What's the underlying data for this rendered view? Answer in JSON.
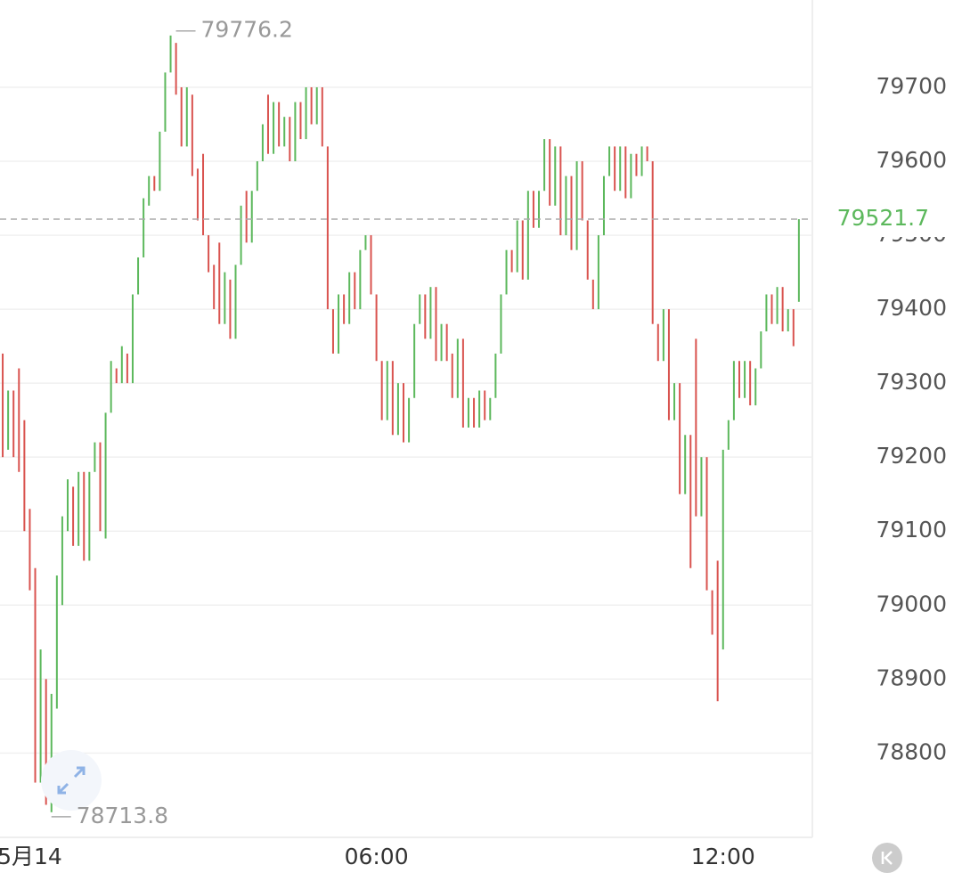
{
  "chart_data": {
    "type": "ohlc",
    "up_color": "#5cb85c",
    "down_color": "#d9534f",
    "open": [
      79340,
      79210,
      79290,
      79320,
      79250,
      79130,
      79050,
      78760,
      78900,
      78720,
      78860,
      79000,
      79100,
      79160,
      79080,
      79180,
      79060,
      79180,
      79220,
      79090,
      79260,
      79320,
      79300,
      79340,
      79300,
      79420,
      79470,
      79540,
      79580,
      79560,
      79640,
      79720,
      79760,
      79700,
      79620,
      79690,
      79590,
      79610,
      79500,
      79460,
      79490,
      79380,
      79440,
      79360,
      79460,
      79560,
      79490,
      79560,
      79600,
      79690,
      79610,
      79680,
      79620,
      79660,
      79600,
      79680,
      79630,
      79700,
      79650,
      79700,
      79620,
      79400,
      79340,
      79420,
      79380,
      79450,
      79400,
      79480,
      79500,
      79420,
      79330,
      79250,
      79330,
      79230,
      79300,
      79220,
      79280,
      79380,
      79420,
      79360,
      79430,
      79330,
      79380,
      79340,
      79280,
      79360,
      79240,
      79280,
      79240,
      79290,
      79250,
      79280,
      79340,
      79420,
      79480,
      79450,
      79520,
      79440,
      79560,
      79510,
      79560,
      79630,
      79540,
      79620,
      79500,
      79580,
      79480,
      79600,
      79520,
      79440,
      79400,
      79500,
      79580,
      79620,
      79560,
      79620,
      79550,
      79610,
      79580,
      79620,
      79600,
      79380,
      79330,
      79400,
      79250,
      79300,
      79150,
      79230,
      79360,
      79120,
      79200,
      79020,
      79060,
      78940,
      79210,
      79250,
      79330,
      79280,
      79330,
      79270,
      79320,
      79370,
      79420,
      79380,
      79430,
      79370,
      79400,
      79410
    ],
    "close": [
      79200,
      79290,
      79200,
      79180,
      79100,
      79020,
      78760,
      78940,
      78730,
      78880,
      79040,
      79120,
      79170,
      79080,
      79180,
      79060,
      79180,
      79220,
      79100,
      79260,
      79330,
      79300,
      79350,
      79300,
      79420,
      79470,
      79550,
      79580,
      79560,
      79640,
      79720,
      79770,
      79690,
      79620,
      79700,
      79580,
      79520,
      79500,
      79450,
      79400,
      79380,
      79450,
      79360,
      79460,
      79540,
      79490,
      79560,
      79600,
      79650,
      79610,
      79680,
      79620,
      79660,
      79600,
      79680,
      79630,
      79700,
      79650,
      79700,
      79620,
      79400,
      79340,
      79420,
      79380,
      79450,
      79400,
      79480,
      79500,
      79420,
      79330,
      79250,
      79330,
      79230,
      79300,
      79220,
      79280,
      79380,
      79420,
      79360,
      79430,
      79330,
      79380,
      79330,
      79280,
      79360,
      79240,
      79280,
      79240,
      79290,
      79250,
      79280,
      79340,
      79420,
      79480,
      79450,
      79520,
      79440,
      79560,
      79510,
      79560,
      79630,
      79540,
      79620,
      79500,
      79580,
      79480,
      79600,
      79520,
      79440,
      79400,
      79500,
      79580,
      79620,
      79560,
      79620,
      79550,
      79610,
      79580,
      79620,
      79600,
      79380,
      79330,
      79400,
      79250,
      79300,
      79150,
      79230,
      79050,
      79120,
      79200,
      79020,
      78960,
      78870,
      79210,
      79250,
      79330,
      79280,
      79330,
      79270,
      79320,
      79370,
      79420,
      79380,
      79430,
      79370,
      79400,
      79350,
      79521.7
    ],
    "xlim": [
      -0.5,
      148.5
    ],
    "xticks": [
      {
        "value": 5,
        "label": "5月14"
      },
      {
        "value": 69,
        "label": "06:00"
      },
      {
        "value": 133,
        "label": "12:00"
      }
    ],
    "ylim": [
      78686,
      79818
    ],
    "yticks": [
      78800,
      78900,
      79000,
      79100,
      79200,
      79300,
      79400,
      79500,
      79600,
      79700
    ],
    "grid": true,
    "high_mark": 79776.2,
    "low_mark": 78713.8,
    "last_price": 79521.7
  }
}
